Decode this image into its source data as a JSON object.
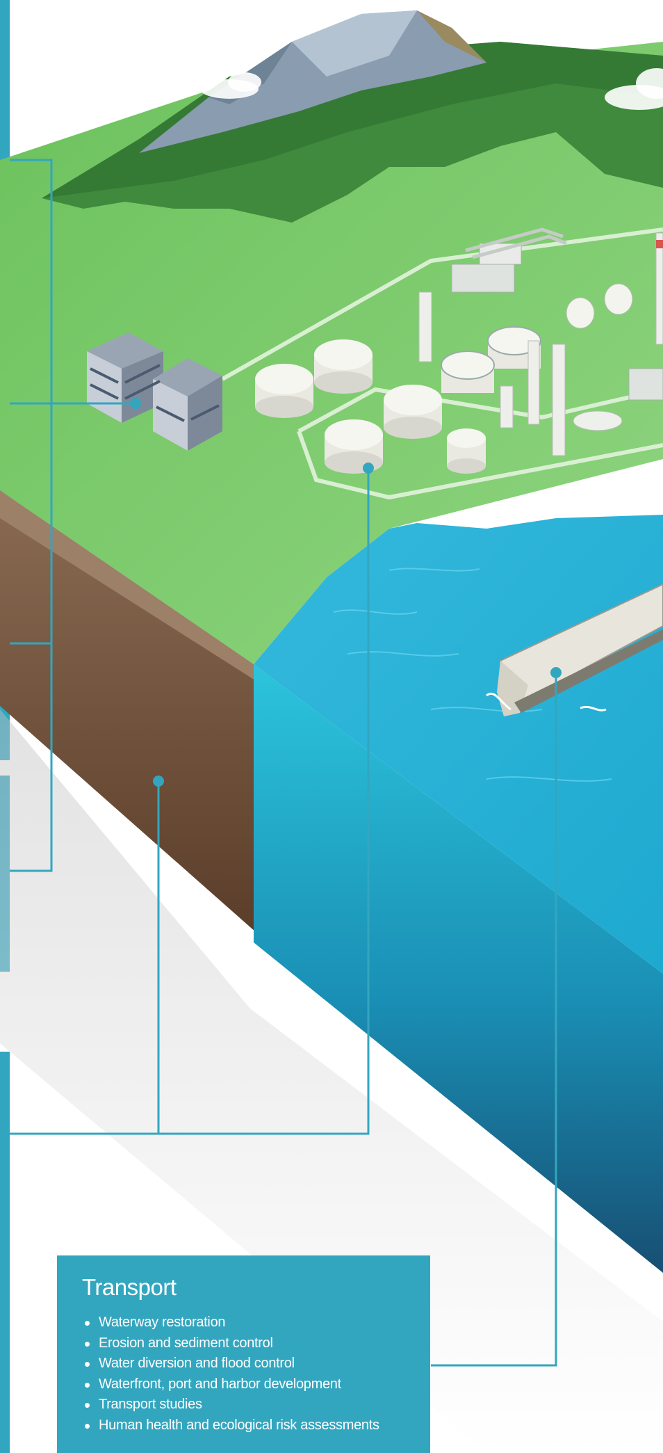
{
  "colors": {
    "accent": "#33a6bf",
    "grass": "#7fc870",
    "forest": "#3f8a3c",
    "water": "#29b3d6",
    "soil": "#6b4a33"
  },
  "icons": [
    "office-building-icon",
    "refinery-icon",
    "storage-tank-icon",
    "cargo-ship-icon",
    "mountain-icon",
    "cloud-icon"
  ],
  "card": {
    "title": "Transport",
    "items": [
      "Waterway restoration",
      "Erosion and sediment control",
      "Water diversion and flood control",
      "Waterfront, port and harbor development",
      "Transport studies",
      "Human health and ecological risk assessments"
    ]
  }
}
